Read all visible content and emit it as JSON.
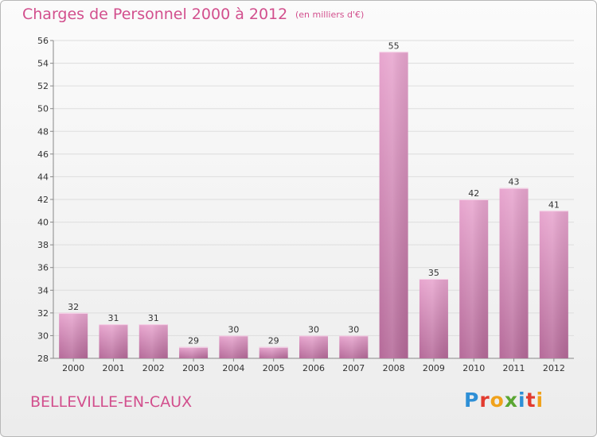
{
  "header": {
    "title": "Charges de Personnel 2000 à 2012",
    "subtitle": "(en milliers d'€)"
  },
  "footer": {
    "commune": "BELLEVILLE-EN-CAUX",
    "logo": "Proxiti"
  },
  "colors": {
    "accent": "#d24f8d",
    "bar_top": "#e8a6cf",
    "bar_bottom": "#b56a99",
    "grid": "#dddddd",
    "axis_text": "#333333"
  },
  "chart_data": {
    "type": "bar",
    "title": "Charges de Personnel 2000 à 2012",
    "subtitle": "(en milliers d'€)",
    "categories": [
      "2000",
      "2001",
      "2002",
      "2003",
      "2004",
      "2005",
      "2006",
      "2007",
      "2008",
      "2009",
      "2010",
      "2011",
      "2012"
    ],
    "values": [
      32,
      31,
      31,
      29,
      30,
      29,
      30,
      30,
      55,
      35,
      42,
      43,
      41
    ],
    "ylim": [
      28,
      56
    ],
    "yticks": [
      28,
      30,
      32,
      34,
      36,
      38,
      40,
      42,
      44,
      46,
      48,
      50,
      52,
      54,
      56
    ],
    "grid": true,
    "data_labels": true,
    "legend": "none"
  }
}
